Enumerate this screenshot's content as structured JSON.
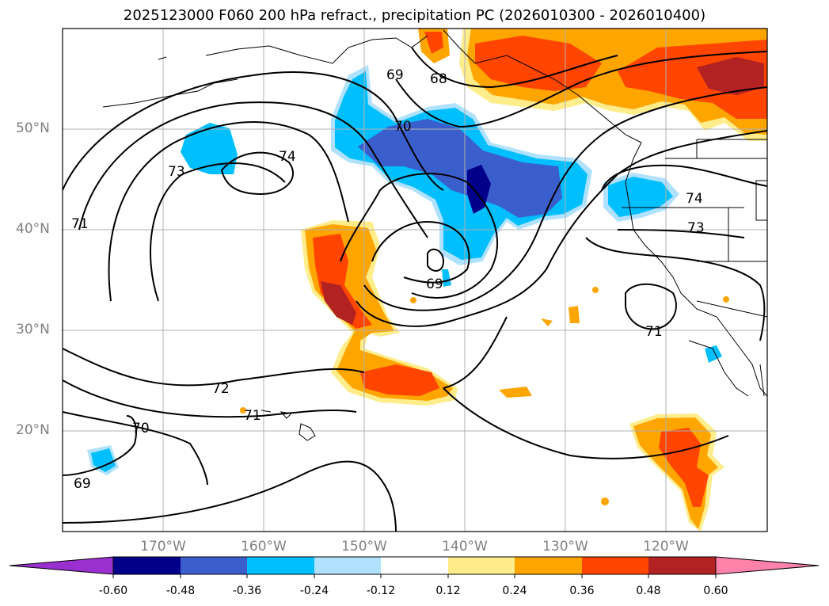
{
  "title": "2025123000 F060 200 hPa refract., precipitation PC (2026010300 - 2026010400)",
  "map": {
    "lat_labels": [
      "50°N",
      "40°N",
      "30°N",
      "20°N"
    ],
    "lon_labels": [
      "170°W",
      "160°W",
      "150°W",
      "140°W",
      "130°W",
      "120°W"
    ],
    "contour_labels": [
      "69",
      "68",
      "70",
      "74",
      "73",
      "71",
      "69",
      "72",
      "71",
      "70",
      "69",
      "74",
      "73",
      "71"
    ]
  },
  "colorbar": {
    "ticks": [
      "-0.60",
      "-0.48",
      "-0.36",
      "-0.24",
      "-0.12",
      "0.12",
      "0.24",
      "0.36",
      "0.48",
      "0.60"
    ],
    "colors": [
      "#9b30d0",
      "#00008b",
      "#3a5fcd",
      "#00bfff",
      "#b0e2ff",
      "#ffffff",
      "#ffec8b",
      "#ffa500",
      "#ff4500",
      "#b22222",
      "#ff82ab"
    ]
  },
  "colors": {
    "frame": "#000000",
    "grid": "#b0b0b0",
    "axis_text": "#808080"
  }
}
